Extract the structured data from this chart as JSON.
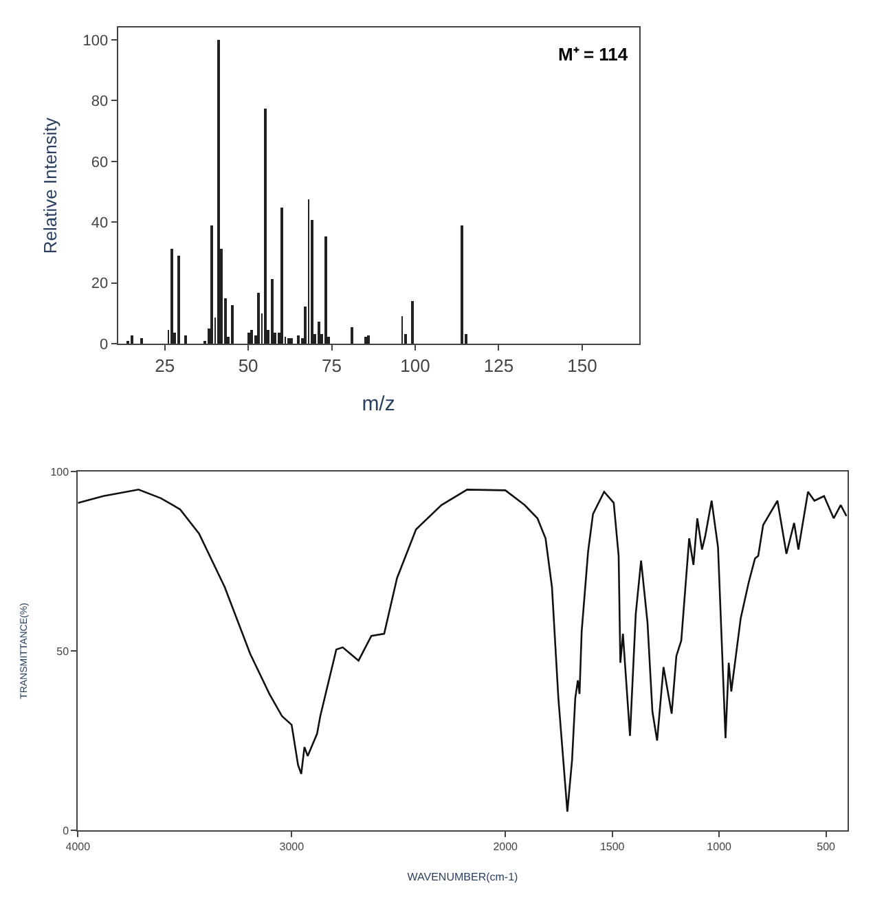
{
  "chart_data": [
    {
      "type": "bar",
      "xlabel": "m/z",
      "ylabel": "Relative Intensity",
      "color": "#222222",
      "annotations": [
        "M⁺ = 114"
      ],
      "x": [
        14,
        15,
        18,
        26,
        27,
        28,
        29,
        31,
        37,
        38,
        39,
        40,
        41,
        42,
        43,
        44,
        45,
        50,
        51,
        52,
        53,
        54,
        55,
        56,
        57,
        58,
        59,
        60,
        61,
        62,
        63,
        65,
        66,
        67,
        68,
        69,
        70,
        71,
        72,
        73,
        74,
        81,
        85,
        86,
        96,
        97,
        99,
        114,
        115
      ],
      "values": [
        1,
        2.5,
        1.5,
        4.5,
        31,
        3.5,
        29,
        2.5,
        0.5,
        5,
        39,
        8.5,
        100,
        31,
        15,
        2,
        12.5,
        3.5,
        4.5,
        2.5,
        16.5,
        10,
        77.5,
        4.5,
        21,
        3.5,
        3.5,
        44.5,
        2,
        1.5,
        1.5,
        2.5,
        1.5,
        12,
        47.5,
        40.5,
        3,
        7,
        3,
        35,
        2,
        5.5,
        2,
        2.5,
        9,
        3,
        14,
        39,
        3
      ],
      "xlim": [
        11,
        167
      ],
      "xticks": [
        25,
        50,
        75,
        100,
        125,
        150
      ],
      "ylim": [
        0,
        104
      ],
      "yticks": [
        0,
        20,
        40,
        60,
        80,
        100
      ]
    },
    {
      "type": "line",
      "xlabel": "WAVENUMBER(cm-1)",
      "ylabel": "TRANSMITTANCE(%)",
      "color": "#111111",
      "x": [
        4000,
        3881,
        3716,
        3612,
        3522,
        3433,
        3313,
        3194,
        3104,
        3045,
        3000,
        2970,
        2955,
        2940,
        2925,
        2881,
        2866,
        2791,
        2761,
        2687,
        2627,
        2567,
        2507,
        2418,
        2299,
        2179,
        2000,
        1910,
        1850,
        1812,
        1782,
        1752,
        1710,
        1688,
        1673,
        1661,
        1653,
        1643,
        1613,
        1590,
        1538,
        1493,
        1470,
        1462,
        1450,
        1417,
        1390,
        1365,
        1335,
        1312,
        1290,
        1260,
        1222,
        1200,
        1177,
        1140,
        1120,
        1102,
        1080,
        1065,
        1035,
        1005,
        970,
        955,
        943,
        899,
        862,
        832,
        817,
        794,
        727,
        685,
        649,
        629,
        584,
        554,
        509,
        464,
        431,
        404
      ],
      "values": [
        91.3,
        93.2,
        95,
        92.6,
        89.5,
        82.7,
        67.8,
        49.2,
        38,
        31.8,
        29.4,
        18.2,
        15.7,
        23.2,
        20.7,
        26.9,
        31.8,
        50.4,
        51,
        47.3,
        54.2,
        54.8,
        70.3,
        83.9,
        90.7,
        95,
        94.8,
        90.7,
        87,
        81.4,
        67.8,
        36.8,
        5.2,
        19.5,
        36.8,
        41.8,
        38,
        55.4,
        77.7,
        88.2,
        94.4,
        91.3,
        76.5,
        46.7,
        54.8,
        26.3,
        60.3,
        75.2,
        57.9,
        33.1,
        25,
        45.5,
        32.5,
        48.6,
        52.9,
        81.4,
        74,
        87,
        78.3,
        82,
        91.9,
        78.9,
        25.7,
        46.7,
        38.7,
        59.1,
        69,
        75.8,
        76.5,
        85.1,
        91.9,
        77.1,
        85.7,
        78.3,
        94.4,
        91.9,
        93.2,
        87,
        90.7,
        87.6
      ],
      "xlim": [
        4000,
        400
      ],
      "xticks": [
        4000,
        3000,
        2000,
        1500,
        1000,
        500
      ],
      "ylim": [
        0,
        100
      ],
      "yticks": [
        0,
        50,
        100
      ]
    }
  ]
}
